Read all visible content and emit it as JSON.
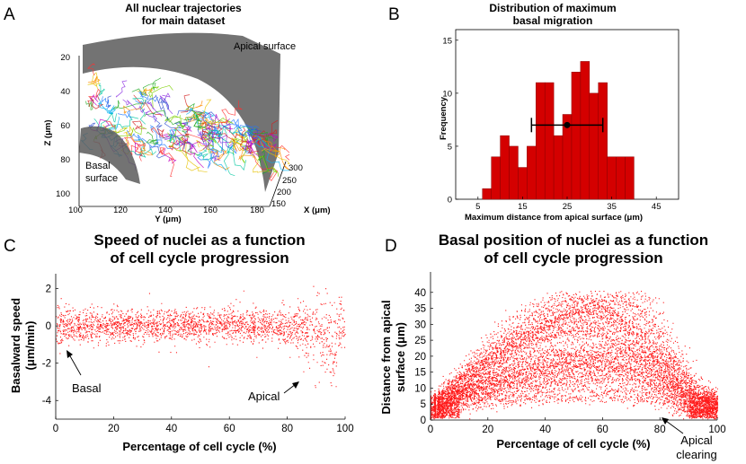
{
  "colors": {
    "bar": "#d40000",
    "dots": "#ff1a1a",
    "surface": "#5a5a5a",
    "axis": "#000000"
  },
  "panel_a": {
    "letter": "A",
    "title_line1": "All nuclear trajectories",
    "title_line2": "for main dataset",
    "apical_label": "Apical surface",
    "basal_label_line1": "Basal",
    "basal_label_line2": "surface",
    "z_ticks": [
      "20",
      "40",
      "60",
      "80",
      "100"
    ],
    "y_ticks": [
      "100",
      "120",
      "140",
      "160",
      "180"
    ],
    "x_ticks": [
      "300",
      "250",
      "200",
      "150"
    ],
    "z_label": "Z (μm)",
    "y_label": "Y (μm)",
    "x_label": "X (μm)"
  },
  "panel_b": {
    "letter": "B",
    "chart_data": {
      "type": "bar",
      "title": "Distribution of maximum basal migration",
      "title_line1": "Distribution of maximum",
      "title_line2": "basal migration",
      "xlabel": "Maximum distance from apical surface (μm)",
      "ylabel": "Frequency",
      "xlim": [
        0,
        50
      ],
      "ylim": [
        0,
        16
      ],
      "bin_width": 2,
      "bin_starts": [
        6,
        8,
        10,
        12,
        14,
        16,
        18,
        20,
        22,
        24,
        26,
        28,
        30,
        32,
        34,
        36,
        38
      ],
      "values": [
        1,
        4,
        6,
        5,
        3,
        5,
        11,
        11,
        6,
        8,
        12,
        13,
        10,
        11,
        4,
        4,
        4
      ],
      "x_ticks": [
        "5",
        "15",
        "25",
        "35",
        "45"
      ],
      "y_ticks": [
        "0",
        "5",
        "10",
        "15"
      ],
      "errorbar": {
        "mean": 25,
        "low": 17,
        "high": 33,
        "y": 7
      }
    }
  },
  "panel_c": {
    "letter": "C",
    "chart_data": {
      "type": "scatter",
      "title": "Speed of nuclei as a function of cell cycle progression",
      "title_line1": "Speed of nuclei as a function",
      "title_line2": "of cell cycle progression",
      "xlabel": "Percentage of cell cycle (%)",
      "ylabel": "Basalward speed (μm/min)",
      "ylabel_line1": "Basalward speed",
      "ylabel_line2": "(μm/min)",
      "xlim": [
        0,
        100
      ],
      "ylim": [
        -5,
        2.8
      ],
      "x_ticks": [
        "0",
        "20",
        "40",
        "60",
        "80",
        "100"
      ],
      "y_ticks": [
        "2",
        "0",
        "-2",
        "-4"
      ],
      "annotations": [
        {
          "text": "Basal",
          "x": 5,
          "y": -2.8
        },
        {
          "text": "Apical",
          "x": 72,
          "y": -3.6
        }
      ],
      "series_description": "dense scatter, speed ≈ 0 ± 0.6 across cycle, widening negative near 85–95%"
    }
  },
  "panel_d": {
    "letter": "D",
    "chart_data": {
      "type": "scatter",
      "title": "Basal position of nuclei as a function of cell cycle progression",
      "title_line1": "Basal position of nuclei as a function",
      "title_line2": "of cell cycle progression",
      "xlabel": "Percentage of cell cycle (%)",
      "ylabel": "Distance from apical surface (μm)",
      "ylabel_line1": "Distance from apical",
      "ylabel_line2": "surface (μm)",
      "xlim": [
        0,
        100
      ],
      "ylim": [
        0,
        45
      ],
      "x_ticks": [
        "0",
        "20",
        "40",
        "60",
        "80",
        "100"
      ],
      "y_ticks": [
        "0",
        "5",
        "10",
        "15",
        "20",
        "25",
        "30",
        "35",
        "40"
      ],
      "annotations": [
        {
          "text_line1": "Apical",
          "text_line2": "clearing",
          "x": 82,
          "y": 0
        }
      ],
      "series_description": "trajectories rising from ~2 μm at 0% to a broad peak (up to ~40 μm) near 50–75%, returning to ~2 μm by 100%"
    }
  }
}
